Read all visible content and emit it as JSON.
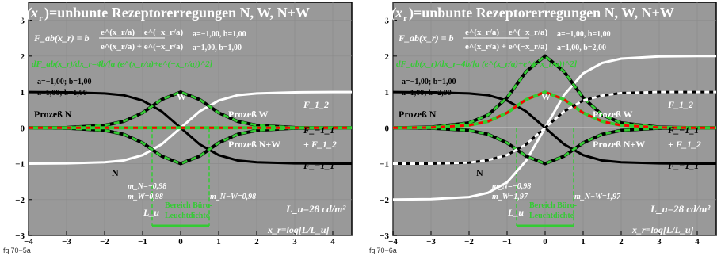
{
  "colors": {
    "background": "#ffffff",
    "plot_background": "#999999",
    "frame": "#000000",
    "white": "#ffffff",
    "black": "#000000",
    "green": "#33cc33",
    "red": "#ff0000"
  },
  "chart_data": [
    {
      "type": "line",
      "figure_id": "fgj70−5a",
      "title": "F_ab(x_r)=unbunte Rezeptorerregungen N, W, N+W",
      "title_main": "=unbunte Rezeptorerregungen",
      "formula_lhs": "F_ab(x_r) = b",
      "formula_numerator": "e^(x_r/a) − e^(−x_r/a)",
      "formula_denominator": "e^(x_r/a) + e^(−x_r/a)",
      "params_top": [
        "a=−1,00, b=1,00",
        "a=1,00, b=1,00"
      ],
      "derivative_label": "dF_ab(x_r)/dx_r=4b/[a (e^(x_r/a)+e^(−x_r/a))^2]",
      "params_left": [
        "a=−1,00; b=1,00",
        "a=1,00; b=1,00"
      ],
      "labels": {
        "prozess_n": "Prozeß N",
        "prozess_w": "Prozeß W",
        "prozess_nw": "Prozeß N+W",
        "n": "N",
        "w": "W",
        "f12": "F_1_2",
        "f11": "F_−1_1",
        "f11_plus": "+ F_1_2",
        "m_n": "m_N=−0,98",
        "m_w": "m_W=0,98",
        "m_nw": "m_N−W=0,98",
        "lu": "L_u",
        "bereich": "Bereich Büro-",
        "leucht": "Leuchtdichte",
        "lum": "L_u=28 cd/m²",
        "xlabel": "x_r=log[L/L_u]"
      },
      "xlim": [
        -4,
        4.5
      ],
      "ylim": [
        -3,
        3.5
      ],
      "x_ticks": [
        -4,
        -3,
        -2,
        -1,
        0,
        1,
        2,
        3,
        4
      ],
      "y_ticks": [
        -3,
        -2,
        -1,
        0,
        1,
        2,
        3
      ],
      "office_range": [
        -0.75,
        0.75
      ],
      "series": [
        {
          "a": -1.0,
          "b": 1.0,
          "style": "black-solid",
          "x": [
            -4,
            -3,
            -2,
            -1.5,
            -1,
            -0.5,
            0,
            0.5,
            1,
            1.5,
            2,
            3,
            4,
            4.5
          ],
          "values": [
            1.0,
            0.99,
            0.96,
            0.91,
            0.76,
            0.46,
            0,
            -0.46,
            -0.76,
            -0.91,
            -0.96,
            -0.99,
            -1.0,
            -1.0
          ]
        },
        {
          "a": 1.0,
          "b": 1.0,
          "style": "white-solid",
          "x": [
            -4,
            -3,
            -2,
            -1.5,
            -1,
            -0.5,
            0,
            0.5,
            1,
            1.5,
            2,
            3,
            4,
            4.5
          ],
          "values": [
            -1.0,
            -0.99,
            -0.96,
            -0.91,
            -0.76,
            -0.46,
            0,
            0.46,
            0.76,
            0.91,
            0.96,
            0.99,
            1.0,
            1.0
          ]
        },
        {
          "style": "green-dashed-derivative-up",
          "x": [
            -4,
            -3,
            -2,
            -1.5,
            -1,
            -0.5,
            0,
            0.5,
            1,
            1.5,
            2,
            3,
            4,
            4.5
          ],
          "values": [
            0.0,
            0.01,
            0.07,
            0.18,
            0.42,
            0.79,
            1.0,
            0.79,
            0.42,
            0.18,
            0.07,
            0.01,
            0.0,
            0.0
          ]
        },
        {
          "style": "green-dashed-derivative-down",
          "x": [
            -4,
            -3,
            -2,
            -1.5,
            -1,
            -0.5,
            0,
            0.5,
            1,
            1.5,
            2,
            3,
            4,
            4.5
          ],
          "values": [
            0.0,
            -0.01,
            -0.07,
            -0.18,
            -0.42,
            -0.79,
            -1.0,
            -0.79,
            -0.42,
            -0.18,
            -0.07,
            -0.01,
            0.0,
            0.0
          ]
        },
        {
          "style": "red-green-sum",
          "x": [
            -4,
            4.5
          ],
          "values": [
            0,
            0
          ]
        }
      ]
    },
    {
      "type": "line",
      "figure_id": "fgj70−6a",
      "title": "F_ab(x_r)=unbunte Rezeptorerregungen N, W, N+W",
      "title_main": "=unbunte Rezeptorerregungen",
      "formula_lhs": "F_ab(x_r) = b",
      "formula_numerator": "e^(x_r/a) − e^(−x_r/a)",
      "formula_denominator": "e^(x_r/a) + e^(−x_r/a)",
      "params_top": [
        "a=−1,00, b=1,00",
        "a=1,00, b=2,00"
      ],
      "derivative_label": "dF_ab(x_r)/dx_r=4b/[a (e^(x_r/a)+e^(−x_r/a))^2]",
      "params_left": [
        "a=−1,00; b=1,00",
        "a=1,00; b=2,00"
      ],
      "labels": {
        "prozess_n": "Prozeß N",
        "prozess_w": "Prozeß W",
        "prozess_nw": "Prozeß N+W",
        "n": "N",
        "w": "W",
        "f12": "F_1_2",
        "f11": "F_−1_1",
        "f11_plus": "+ F_1_2",
        "m_n": "m_N=−0,98",
        "m_w": "m_W=1,97",
        "m_nw": "m_N−W=1,97",
        "lu": "L_u",
        "bereich": "Bereich Büro-",
        "leucht": "Leuchtdichte",
        "lum": "L_u=28 cd/m²",
        "xlabel": "x_r=log[L/L_u]"
      },
      "xlim": [
        -4,
        4.5
      ],
      "ylim": [
        -3,
        3.5
      ],
      "x_ticks": [
        -4,
        -3,
        -2,
        -1,
        0,
        1,
        2,
        3,
        4
      ],
      "y_ticks": [
        -3,
        -2,
        -1,
        0,
        1,
        2,
        3
      ],
      "office_range": [
        -0.75,
        0.75
      ],
      "series": [
        {
          "a": -1.0,
          "b": 1.0,
          "style": "black-solid",
          "x": [
            -4,
            -3,
            -2,
            -1.5,
            -1,
            -0.5,
            0,
            0.5,
            1,
            1.5,
            2,
            3,
            4,
            4.5
          ],
          "values": [
            1.0,
            0.99,
            0.96,
            0.91,
            0.76,
            0.46,
            0,
            -0.46,
            -0.76,
            -0.91,
            -0.96,
            -0.99,
            -1.0,
            -1.0
          ]
        },
        {
          "a": 1.0,
          "b": 2.0,
          "style": "white-solid",
          "x": [
            -4,
            -3,
            -2,
            -1.5,
            -1,
            -0.5,
            0,
            0.5,
            1,
            1.5,
            2,
            3,
            4,
            4.5
          ],
          "values": [
            -2.0,
            -1.99,
            -1.93,
            -1.81,
            -1.52,
            -0.92,
            0,
            0.92,
            1.52,
            1.81,
            1.93,
            1.99,
            2.0,
            2.0
          ]
        },
        {
          "style": "green-dashed-derivative-up",
          "x": [
            -4,
            -3,
            -2,
            -1.5,
            -1,
            -0.5,
            0,
            0.5,
            1,
            1.5,
            2,
            3,
            4,
            4.5
          ],
          "values": [
            0.0,
            0.02,
            0.14,
            0.36,
            0.84,
            1.57,
            2.0,
            1.57,
            0.84,
            0.36,
            0.14,
            0.02,
            0.0,
            0.0
          ]
        },
        {
          "style": "green-dashed-derivative-down",
          "x": [
            -4,
            -3,
            -2,
            -1.5,
            -1,
            -0.5,
            0,
            0.5,
            1,
            1.5,
            2,
            3,
            4,
            4.5
          ],
          "values": [
            0.0,
            -0.01,
            -0.07,
            -0.18,
            -0.42,
            -0.79,
            -1.0,
            -0.79,
            -0.42,
            -0.18,
            -0.07,
            -0.01,
            0.0,
            0.0
          ]
        },
        {
          "style": "red-green-sum",
          "x": [
            -4,
            -3,
            -2,
            -1.5,
            -1,
            -0.5,
            0,
            0.5,
            1,
            1.5,
            2,
            3,
            4,
            4.5
          ],
          "values": [
            0.0,
            0.01,
            0.07,
            0.18,
            0.42,
            0.79,
            1.0,
            0.79,
            0.42,
            0.18,
            0.07,
            0.01,
            0.0,
            0.0
          ]
        },
        {
          "style": "black-white-sum",
          "x": [
            -4,
            -3,
            -2,
            -1.5,
            -1,
            -0.5,
            0,
            0.5,
            1,
            1.5,
            2,
            3,
            4,
            4.5
          ],
          "values": [
            -1.0,
            -1.0,
            -0.97,
            -0.9,
            -0.76,
            -0.46,
            0,
            0.46,
            0.76,
            0.9,
            0.97,
            1.0,
            1.0,
            1.0
          ]
        }
      ]
    }
  ]
}
